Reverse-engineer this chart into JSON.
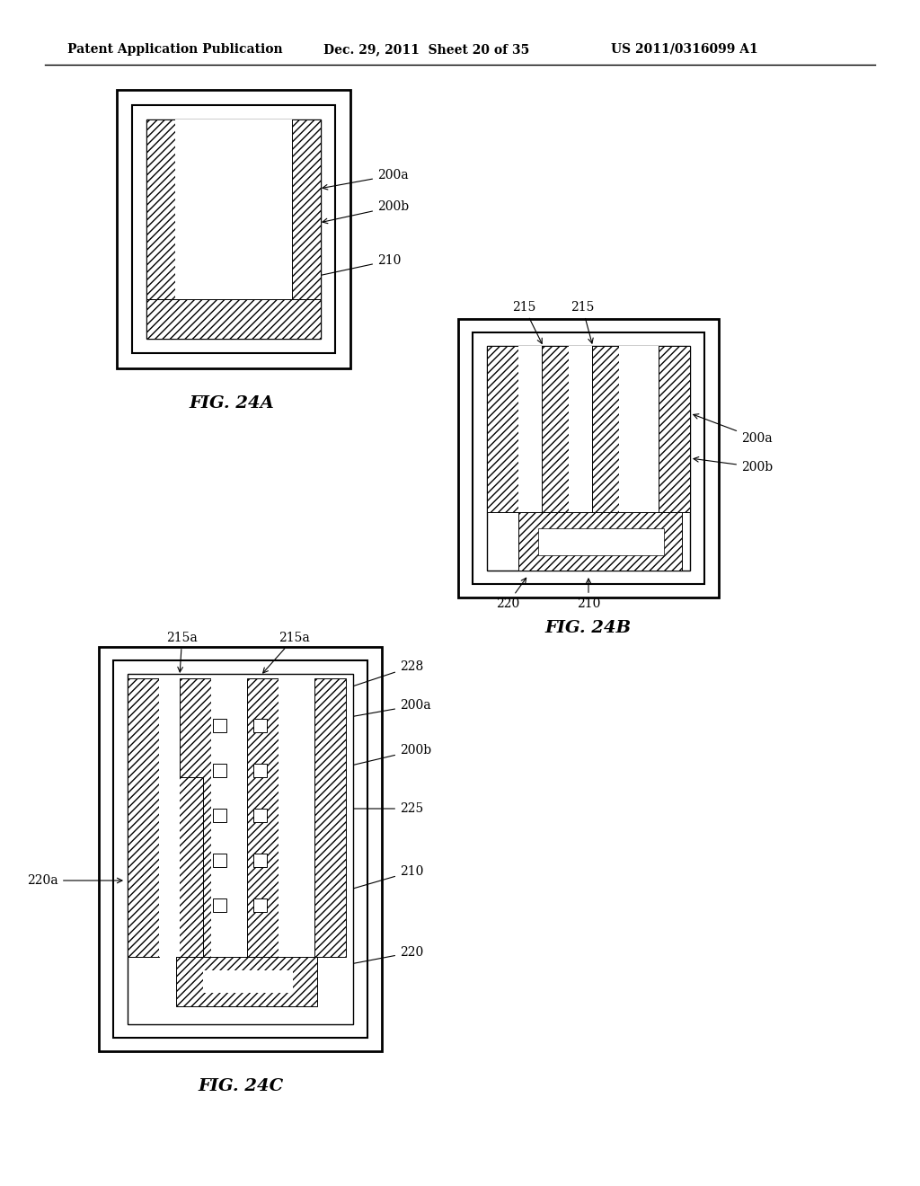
{
  "bg_color": "#ffffff",
  "header_text": "Patent Application Publication",
  "header_date": "Dec. 29, 2011  Sheet 20 of 35",
  "header_patent": "US 2011/0316099 A1"
}
